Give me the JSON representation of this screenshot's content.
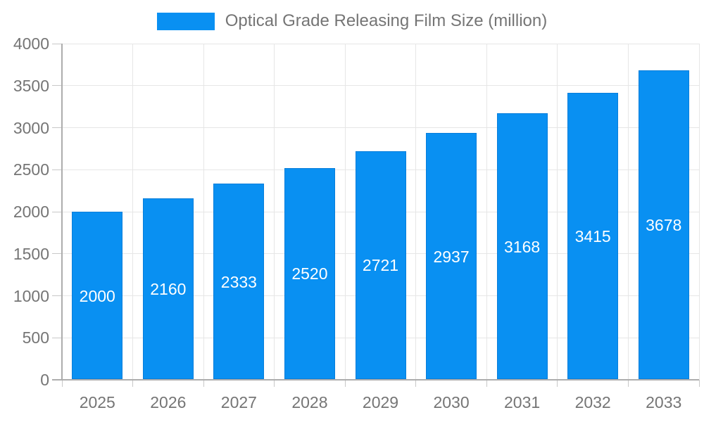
{
  "chart_data": {
    "type": "bar",
    "title": "Optical Grade Releasing Film Size (million)",
    "legend": {
      "position": "top",
      "items": [
        "Optical Grade Releasing Film Size (million)"
      ]
    },
    "categories": [
      "2025",
      "2026",
      "2027",
      "2028",
      "2029",
      "2030",
      "2031",
      "2032",
      "2033"
    ],
    "values": [
      2000,
      2160,
      2333,
      2520,
      2721,
      2937,
      3168,
      3415,
      3678
    ],
    "xlabel": "",
    "ylabel": "",
    "ylim": [
      0,
      4000
    ],
    "yticks": [
      0,
      500,
      1000,
      1500,
      2000,
      2500,
      3000,
      3500,
      4000
    ],
    "grid": true,
    "bar_labels_visible": true,
    "colors": {
      "bar_fill": "#0990f2",
      "bar_border": "#087edb",
      "bar_label_text": "#ffffff",
      "axis_text": "#757575",
      "legend_text": "#757575",
      "gridline": "#e6e6e6",
      "axis_line": "#adadad",
      "tick": "#c8c8c8",
      "background": "#ffffff"
    }
  }
}
